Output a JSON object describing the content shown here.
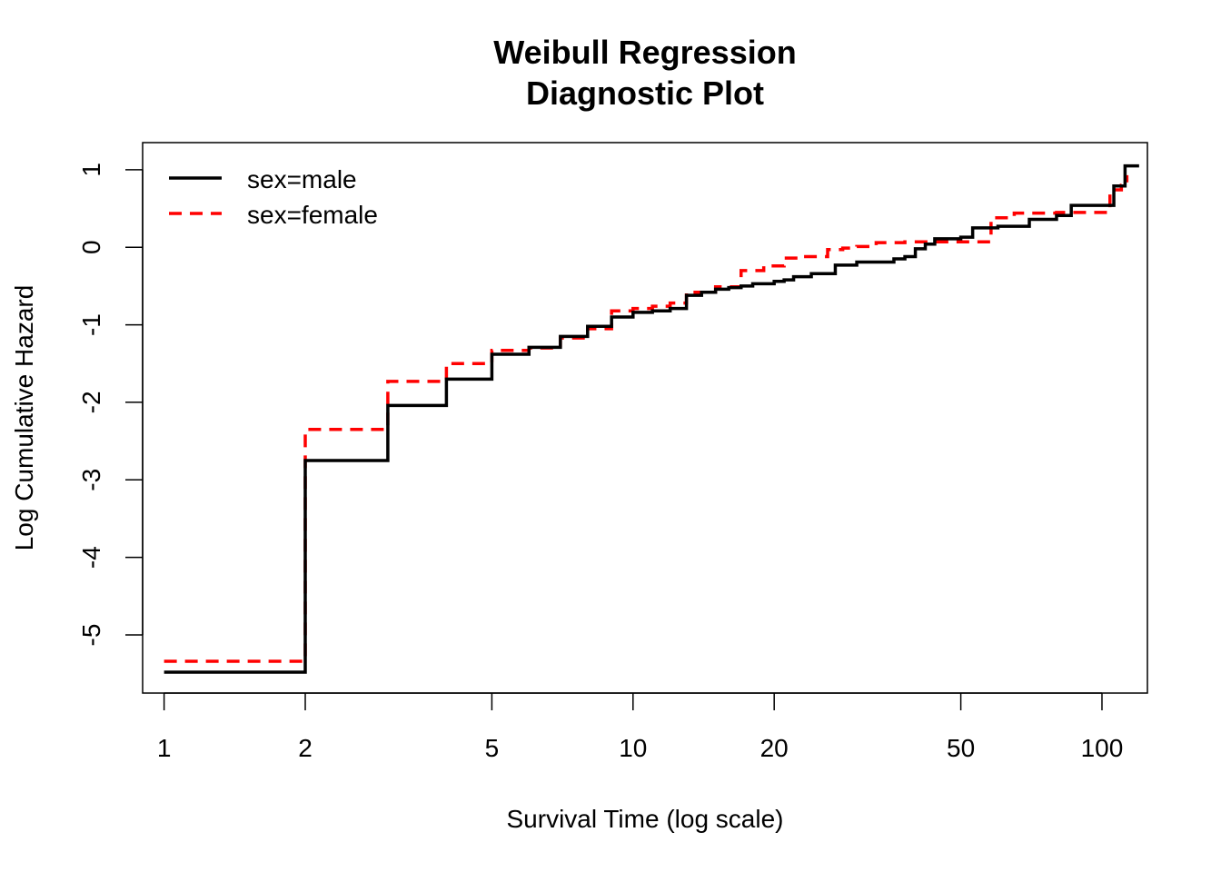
{
  "chart_data": {
    "type": "line",
    "step": true,
    "title": [
      "Weibull Regression",
      "Diagnostic Plot"
    ],
    "xlabel": "Survival Time (log scale)",
    "ylabel": "Log Cumulative Hazard",
    "x_scale": "log",
    "xlim": [
      0.9,
      125
    ],
    "ylim": [
      -5.75,
      1.35
    ],
    "x_ticks": [
      1,
      2,
      5,
      10,
      20,
      50,
      100
    ],
    "x_tick_labels": [
      "1",
      "2",
      "5",
      "10",
      "20",
      "50",
      "100"
    ],
    "y_ticks": [
      -5,
      -4,
      -3,
      -2,
      -1,
      0,
      1
    ],
    "y_tick_labels": [
      "-5",
      "-4",
      "-3",
      "-2",
      "-1",
      "0",
      "1"
    ],
    "grid": false,
    "legend": {
      "position": "top-left"
    },
    "series": [
      {
        "name": "sex=male",
        "color": "#000000",
        "dash": "solid",
        "x": [
          1,
          2,
          3,
          4,
          5,
          6,
          7,
          8,
          9,
          10,
          11,
          12,
          13,
          14,
          15,
          16,
          17,
          18,
          20,
          21,
          22,
          24,
          27,
          30,
          36,
          38,
          40,
          42,
          44,
          50,
          53,
          60,
          70,
          80,
          86,
          104,
          106,
          112,
          120
        ],
        "y": [
          -5.48,
          -2.75,
          -2.04,
          -1.7,
          -1.38,
          -1.29,
          -1.15,
          -1.02,
          -0.9,
          -0.84,
          -0.82,
          -0.79,
          -0.62,
          -0.58,
          -0.54,
          -0.52,
          -0.5,
          -0.47,
          -0.44,
          -0.42,
          -0.38,
          -0.34,
          -0.23,
          -0.19,
          -0.15,
          -0.12,
          -0.02,
          0.04,
          0.11,
          0.13,
          0.25,
          0.27,
          0.36,
          0.41,
          0.54,
          0.54,
          0.79,
          1.05,
          1.05
        ]
      },
      {
        "name": "sex=female",
        "color": "#ff0000",
        "dash": "dashed",
        "x": [
          1,
          2,
          3,
          4,
          5,
          6,
          7,
          8,
          9,
          10,
          11,
          12,
          13,
          15,
          17,
          19,
          21,
          23,
          26,
          28,
          30,
          33,
          38,
          43,
          52,
          58,
          65,
          80,
          90,
          104,
          110,
          113
        ],
        "y": [
          -5.34,
          -2.35,
          -1.73,
          -1.5,
          -1.33,
          -1.3,
          -1.17,
          -1.05,
          -0.82,
          -0.79,
          -0.76,
          -0.72,
          -0.58,
          -0.51,
          -0.3,
          -0.24,
          -0.14,
          -0.12,
          -0.03,
          -0.01,
          0.01,
          0.06,
          0.07,
          0.07,
          0.07,
          0.38,
          0.44,
          0.45,
          0.45,
          0.74,
          0.8,
          0.93
        ]
      }
    ]
  }
}
